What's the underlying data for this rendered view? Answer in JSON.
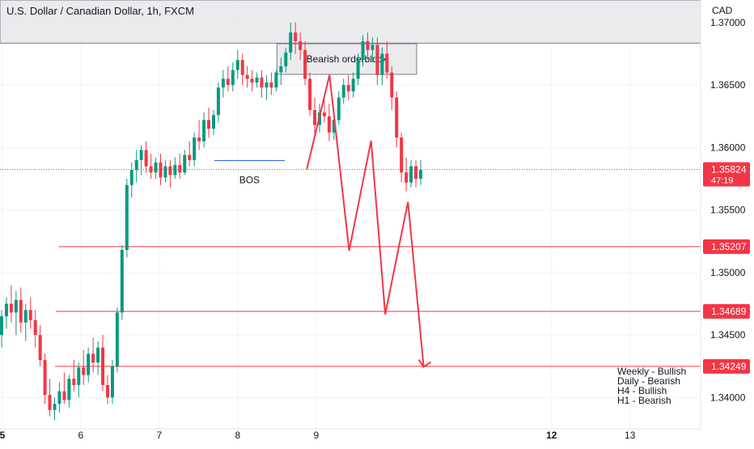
{
  "chart_title": "U.S. Dollar / Canadian Dollar, 1h, FXCM",
  "currency": "CAD",
  "colors": {
    "up": "#089981",
    "down": "#f23645",
    "level": "#f23645",
    "projection": "#f23645",
    "bos": "#2962ff",
    "zone_fill": "#e8e8ea",
    "zone_border": "#787b86",
    "grid": "#f0f3fa",
    "price_label_bg": "#f23645",
    "price_label_text": "#ffffff"
  },
  "chart_data": {
    "type": "candlestick",
    "title": "U.S. Dollar / Canadian Dollar, 1h, FXCM",
    "ylim": [
      1.3375,
      1.3718
    ],
    "xlim": [
      4.97,
      13.9
    ],
    "grid": true,
    "y_ticks": [
      "1.37000",
      "1.36500",
      "1.36000",
      "1.35500",
      "1.35000",
      "1.34500",
      "1.34000"
    ],
    "x_ticks": [
      {
        "x": 5,
        "label": "5",
        "bold": true
      },
      {
        "x": 6,
        "label": "6",
        "bold": false
      },
      {
        "x": 7,
        "label": "7",
        "bold": false
      },
      {
        "x": 8,
        "label": "8",
        "bold": false
      },
      {
        "x": 9,
        "label": "9",
        "bold": false
      },
      {
        "x": 12,
        "label": "12",
        "bold": true
      },
      {
        "x": 13,
        "label": "13",
        "bold": false
      }
    ],
    "current_price": {
      "value": 1.35824,
      "label": "1.35824",
      "countdown": "47:19"
    },
    "levels": [
      {
        "value": 1.35207,
        "label": "1.35207",
        "x_start": 5.72
      },
      {
        "value": 1.34689,
        "label": "1.34689",
        "x_start": 5.68
      },
      {
        "value": 1.34249,
        "label": "1.34249",
        "x_start": 5.67
      }
    ],
    "zones": [
      {
        "name": "upper-zone",
        "x0": 4.97,
        "x1": 13.9,
        "y0": 1.36835,
        "y1": 1.3718,
        "label": ""
      },
      {
        "name": "bearish-orderblock",
        "x0": 8.5,
        "x1": 10.28,
        "y0": 1.36585,
        "y1": 1.3683,
        "label": "Bearish orderblock"
      }
    ],
    "bos": {
      "x0": 7.7,
      "x1": 8.6,
      "y": 1.35895,
      "label": "BOS"
    },
    "projection": [
      [
        8.88,
        1.35824
      ],
      [
        9.17,
        1.3658
      ],
      [
        9.42,
        1.35175
      ],
      [
        9.7,
        1.36055
      ],
      [
        9.88,
        1.34665
      ],
      [
        10.17,
        1.35565
      ],
      [
        10.37,
        1.34245
      ]
    ],
    "bias": [
      "Weekly - Bullish",
      "Daily - Bearish",
      "H4 - Bullish",
      "H1 - Bearish"
    ],
    "candles": [
      [
        1.345,
        1.347,
        1.344,
        1.3465
      ],
      [
        1.3465,
        1.348,
        1.3455,
        1.3475
      ],
      [
        1.3475,
        1.349,
        1.346,
        1.3468
      ],
      [
        1.3468,
        1.3485,
        1.345,
        1.3478
      ],
      [
        1.3478,
        1.3488,
        1.3452,
        1.346
      ],
      [
        1.346,
        1.3475,
        1.3445,
        1.347
      ],
      [
        1.347,
        1.348,
        1.3455,
        1.3462
      ],
      [
        1.3462,
        1.347,
        1.344,
        1.345
      ],
      [
        1.345,
        1.3458,
        1.3425,
        1.343
      ],
      [
        1.343,
        1.3435,
        1.3395,
        1.3402
      ],
      [
        1.3402,
        1.3415,
        1.3385,
        1.339
      ],
      [
        1.339,
        1.34,
        1.3382,
        1.3395
      ],
      [
        1.3395,
        1.3412,
        1.3388,
        1.3405
      ],
      [
        1.3405,
        1.342,
        1.3395,
        1.3398
      ],
      [
        1.3398,
        1.3418,
        1.3392,
        1.3415
      ],
      [
        1.3415,
        1.343,
        1.3405,
        1.341
      ],
      [
        1.341,
        1.3428,
        1.34,
        1.3424
      ],
      [
        1.3424,
        1.3438,
        1.341,
        1.3418
      ],
      [
        1.3418,
        1.344,
        1.3412,
        1.3435
      ],
      [
        1.3435,
        1.3448,
        1.342,
        1.3428
      ],
      [
        1.3428,
        1.3445,
        1.3418,
        1.344
      ],
      [
        1.344,
        1.345,
        1.3405,
        1.341
      ],
      [
        1.341,
        1.3418,
        1.3395,
        1.34
      ],
      [
        1.34,
        1.343,
        1.3395,
        1.3425
      ],
      [
        1.3425,
        1.3472,
        1.342,
        1.3468
      ],
      [
        1.3468,
        1.3522,
        1.3462,
        1.3518
      ],
      [
        1.3518,
        1.3575,
        1.3512,
        1.357
      ],
      [
        1.357,
        1.3588,
        1.356,
        1.3582
      ],
      [
        1.3582,
        1.3598,
        1.3572,
        1.359
      ],
      [
        1.359,
        1.3602,
        1.3578,
        1.3598
      ],
      [
        1.3598,
        1.3605,
        1.358,
        1.3585
      ],
      [
        1.3585,
        1.3595,
        1.3575,
        1.358
      ],
      [
        1.358,
        1.3592,
        1.3575,
        1.3588
      ],
      [
        1.3588,
        1.3595,
        1.357,
        1.3576
      ],
      [
        1.3576,
        1.359,
        1.3572,
        1.3585
      ],
      [
        1.3585,
        1.359,
        1.3568,
        1.3578
      ],
      [
        1.3578,
        1.3592,
        1.3575,
        1.3586
      ],
      [
        1.3586,
        1.3595,
        1.3575,
        1.358
      ],
      [
        1.358,
        1.3598,
        1.3578,
        1.3594
      ],
      [
        1.3594,
        1.3605,
        1.3585,
        1.359
      ],
      [
        1.359,
        1.3612,
        1.3585,
        1.3608
      ],
      [
        1.3608,
        1.3622,
        1.3598,
        1.3605
      ],
      [
        1.3605,
        1.3628,
        1.36,
        1.3622
      ],
      [
        1.3622,
        1.3632,
        1.3608,
        1.3615
      ],
      [
        1.3615,
        1.363,
        1.361,
        1.3626
      ],
      [
        1.3626,
        1.3652,
        1.362,
        1.3648
      ],
      [
        1.3648,
        1.3662,
        1.364,
        1.3655
      ],
      [
        1.3655,
        1.3665,
        1.3645,
        1.365
      ],
      [
        1.365,
        1.3668,
        1.3645,
        1.3662
      ],
      [
        1.3662,
        1.3678,
        1.3655,
        1.367
      ],
      [
        1.367,
        1.3675,
        1.365,
        1.3658
      ],
      [
        1.3658,
        1.3665,
        1.3648,
        1.3655
      ],
      [
        1.3655,
        1.3662,
        1.3645,
        1.3652
      ],
      [
        1.3652,
        1.366,
        1.3648,
        1.3656
      ],
      [
        1.3656,
        1.3662,
        1.364,
        1.3648
      ],
      [
        1.3648,
        1.3658,
        1.3638,
        1.3652
      ],
      [
        1.3652,
        1.366,
        1.3642,
        1.3648
      ],
      [
        1.3648,
        1.3662,
        1.3645,
        1.366
      ],
      [
        1.366,
        1.3672,
        1.365,
        1.3665
      ],
      [
        1.3665,
        1.368,
        1.366,
        1.3676
      ],
      [
        1.3676,
        1.37,
        1.367,
        1.3692
      ],
      [
        1.3692,
        1.37,
        1.3675,
        1.3685
      ],
      [
        1.3685,
        1.3692,
        1.367,
        1.3678
      ],
      [
        1.3678,
        1.3685,
        1.365,
        1.3655
      ],
      [
        1.3655,
        1.366,
        1.3625,
        1.363
      ],
      [
        1.363,
        1.364,
        1.361,
        1.3618
      ],
      [
        1.3618,
        1.3635,
        1.3612,
        1.3628
      ],
      [
        1.3628,
        1.364,
        1.362,
        1.3625
      ],
      [
        1.3625,
        1.3635,
        1.3605,
        1.3612
      ],
      [
        1.3612,
        1.3628,
        1.3606,
        1.3622
      ],
      [
        1.3622,
        1.3645,
        1.3618,
        1.364
      ],
      [
        1.364,
        1.3655,
        1.3635,
        1.365
      ],
      [
        1.365,
        1.3658,
        1.3638,
        1.3645
      ],
      [
        1.3645,
        1.366,
        1.364,
        1.3655
      ],
      [
        1.3655,
        1.3675,
        1.365,
        1.367
      ],
      [
        1.367,
        1.369,
        1.3665,
        1.3685
      ],
      [
        1.3685,
        1.3692,
        1.367,
        1.3678
      ],
      [
        1.3678,
        1.3688,
        1.3668,
        1.3682
      ],
      [
        1.3682,
        1.3688,
        1.365,
        1.3658
      ],
      [
        1.3658,
        1.368,
        1.365,
        1.3675
      ],
      [
        1.3675,
        1.3685,
        1.3655,
        1.366
      ],
      [
        1.366,
        1.3665,
        1.363,
        1.364
      ],
      [
        1.364,
        1.3645,
        1.36,
        1.3608
      ],
      [
        1.3608,
        1.3612,
        1.3572,
        1.358
      ],
      [
        1.358,
        1.3592,
        1.3565,
        1.3572
      ],
      [
        1.3572,
        1.359,
        1.3568,
        1.3585
      ],
      [
        1.3585,
        1.359,
        1.3568,
        1.3575
      ],
      [
        1.3575,
        1.359,
        1.357,
        1.3582
      ]
    ]
  }
}
